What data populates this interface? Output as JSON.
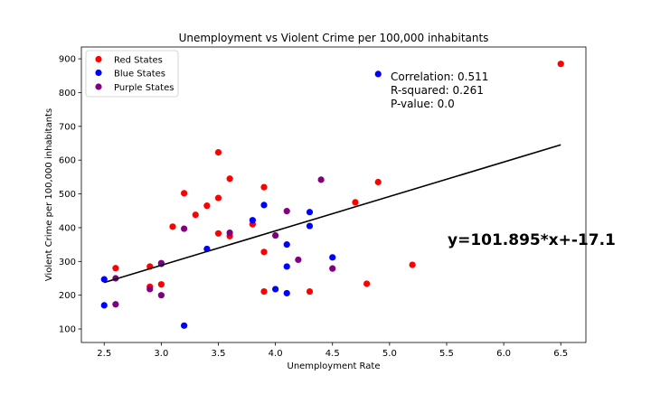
{
  "chart_data": {
    "type": "scatter",
    "title": "Unemployment vs Violent Crime per 100,000 inhabitants",
    "xlabel": "Unemployment Rate",
    "ylabel": "Violent Crime per 100,000 inhabitants",
    "xlim": [
      2.3,
      6.72
    ],
    "ylim": [
      60,
      935
    ],
    "xticks": [
      2.5,
      3.0,
      3.5,
      4.0,
      4.5,
      5.0,
      5.5,
      6.0,
      6.5
    ],
    "xtick_labels": [
      "2.5",
      "3.0",
      "3.5",
      "4.0",
      "4.5",
      "5.0",
      "5.5",
      "6.0",
      "6.5"
    ],
    "yticks": [
      100,
      200,
      300,
      400,
      500,
      600,
      700,
      800,
      900
    ],
    "ytick_labels": [
      "100",
      "200",
      "300",
      "400",
      "500",
      "600",
      "700",
      "800",
      "900"
    ],
    "grid": false,
    "legend_position": "top-left",
    "series": [
      {
        "name": "Red States",
        "color": "#ff0000",
        "points": [
          [
            2.6,
            280
          ],
          [
            2.9,
            285
          ],
          [
            2.9,
            225
          ],
          [
            3.0,
            232
          ],
          [
            3.1,
            403
          ],
          [
            3.2,
            502
          ],
          [
            3.3,
            438
          ],
          [
            3.4,
            465
          ],
          [
            3.5,
            623
          ],
          [
            3.5,
            488
          ],
          [
            3.5,
            383
          ],
          [
            3.6,
            545
          ],
          [
            3.6,
            375
          ],
          [
            3.8,
            410
          ],
          [
            3.9,
            520
          ],
          [
            3.9,
            328
          ],
          [
            3.9,
            211
          ],
          [
            4.3,
            211
          ],
          [
            4.7,
            475
          ],
          [
            4.8,
            234
          ],
          [
            4.9,
            535
          ],
          [
            5.2,
            290
          ],
          [
            6.5,
            885
          ]
        ]
      },
      {
        "name": "Blue States",
        "color": "#0000ff",
        "points": [
          [
            2.5,
            247
          ],
          [
            2.5,
            170
          ],
          [
            3.0,
            293
          ],
          [
            3.2,
            110
          ],
          [
            3.4,
            337
          ],
          [
            3.8,
            422
          ],
          [
            3.9,
            467
          ],
          [
            4.0,
            218
          ],
          [
            4.1,
            350
          ],
          [
            4.1,
            285
          ],
          [
            4.1,
            206
          ],
          [
            4.3,
            446
          ],
          [
            4.3,
            405
          ],
          [
            4.5,
            312
          ],
          [
            4.9,
            855
          ]
        ]
      },
      {
        "name": "Purple States",
        "color": "#800080",
        "points": [
          [
            2.6,
            250
          ],
          [
            2.6,
            173
          ],
          [
            2.9,
            218
          ],
          [
            3.0,
            295
          ],
          [
            3.0,
            200
          ],
          [
            3.2,
            397
          ],
          [
            3.6,
            385
          ],
          [
            4.0,
            377
          ],
          [
            4.1,
            449
          ],
          [
            4.2,
            305
          ],
          [
            4.4,
            542
          ],
          [
            4.5,
            279
          ]
        ]
      }
    ],
    "regression": {
      "slope": 101.895,
      "intercept": -17.1,
      "x_range": [
        2.5,
        6.5
      ],
      "color": "#000000"
    },
    "annotations": {
      "stats_lines": [
        "Correlation: 0.511",
        "R-squared: 0.261",
        "P-value: 0.0"
      ],
      "stats_anchor": [
        5.0,
        835
      ],
      "equation": "y=101.895*x+-17.1",
      "equation_anchor": [
        5.5,
        350
      ]
    }
  }
}
